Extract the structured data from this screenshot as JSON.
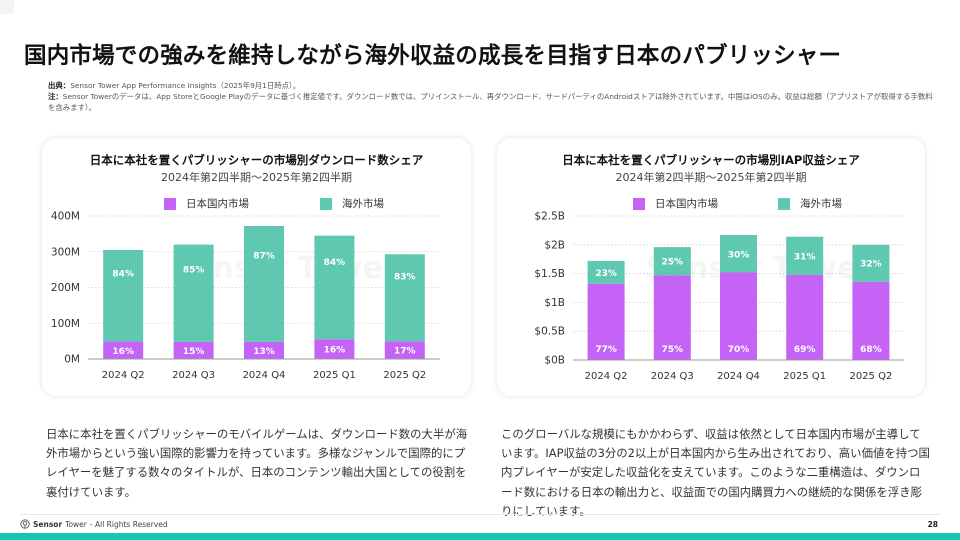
{
  "page": {
    "title": "国内市場での強みを維持しながら海外収益の成長を目指す日本のパブリッシャー",
    "source_label": "出典：",
    "source_text": "Sensor Tower App Performance Insights（2025年9月1日時点）。",
    "note_label": "注：",
    "note_text": "Sensor Towerのデータは、App StoreとGoogle Playのデータに基づく推定値です。ダウンロード数では、プリインストール、再ダウンロード、サードパーティのAndroidストアは除外されています。中国はiOSのみ。収益は総額（アプリストアが取得する手数料を含みます）。",
    "left_text": "日本に本社を置くパブリッシャーのモバイルゲームは、ダウンロード数の大半が海外市場からという強い国際的影響力を持っています。多様なジャンルで国際的にプレイヤーを魅了する数々のタイトルが、日本のコンテンツ輸出大国としての役割を裏付けています。",
    "right_text": "このグローバルな規模にもかかわらず、収益は依然として日本国内市場が主導しています。IAP収益の3分の2以上が日本国内から生み出されており、高い価値を持つ国内プレイヤーが安定した収益化を支えています。このような二重構造は、ダウンロード数における日本の輸出力と、収益面での国内購買力への継続的な関係を浮き彫りにしています。",
    "footer_brand_bold": "Sensor",
    "footer_brand_rest": "Tower",
    "footer_rights": "- All Rights Reserved",
    "page_number": "28",
    "colors": {
      "domestic": "#c463f5",
      "overseas": "#5ec8b0",
      "accent_bar": "#14c8b0"
    }
  },
  "chart_data": [
    {
      "type": "bar",
      "stacked": true,
      "title": "日本に本社を置くパブリッシャーの市場別ダウンロード数シェア",
      "subtitle": "2024年第2四半期～2025年第2四半期",
      "categories": [
        "2024 Q2",
        "2024 Q3",
        "2024 Q4",
        "2025 Q1",
        "2025 Q2"
      ],
      "totals": [
        305,
        320,
        372,
        345,
        293
      ],
      "unit": "M",
      "series": [
        {
          "name": "日本国内市場",
          "share_labels": [
            "16%",
            "15%",
            "13%",
            "16%",
            "17%"
          ],
          "shares": [
            0.16,
            0.15,
            0.13,
            0.16,
            0.17
          ]
        },
        {
          "name": "海外市場",
          "share_labels": [
            "84%",
            "85%",
            "87%",
            "84%",
            "83%"
          ],
          "shares": [
            0.84,
            0.85,
            0.87,
            0.84,
            0.83
          ]
        }
      ],
      "yticks": [
        "0M",
        "100M",
        "200M",
        "300M",
        "400M"
      ],
      "ytick_values": [
        0,
        100,
        200,
        300,
        400
      ],
      "ylim": [
        0,
        400
      ],
      "grid": true,
      "legend": "top-center",
      "watermark": "Sensor Tower"
    },
    {
      "type": "bar",
      "stacked": true,
      "title": "日本に本社を置くパブリッシャーの市場別IAP収益シェア",
      "subtitle": "2024年第2四半期～2025年第2四半期",
      "categories": [
        "2024 Q2",
        "2024 Q3",
        "2024 Q4",
        "2025 Q1",
        "2025 Q2"
      ],
      "totals": [
        1.72,
        1.96,
        2.17,
        2.14,
        2.0
      ],
      "unit": "B USD",
      "series": [
        {
          "name": "日本国内市場",
          "share_labels": [
            "77%",
            "75%",
            "70%",
            "69%",
            "68%"
          ],
          "shares": [
            0.77,
            0.75,
            0.7,
            0.69,
            0.68
          ]
        },
        {
          "name": "海外市場",
          "share_labels": [
            "23%",
            "25%",
            "30%",
            "31%",
            "32%"
          ],
          "shares": [
            0.23,
            0.25,
            0.3,
            0.31,
            0.32
          ]
        }
      ],
      "yticks": [
        "$0B",
        "$0.5B",
        "$1B",
        "$1.5B",
        "$2B",
        "$2.5B"
      ],
      "ytick_values": [
        0,
        0.5,
        1,
        1.5,
        2,
        2.5
      ],
      "ylim": [
        0,
        2.5
      ],
      "grid": true,
      "legend": "top-center",
      "watermark": "Sensor Tower"
    }
  ]
}
